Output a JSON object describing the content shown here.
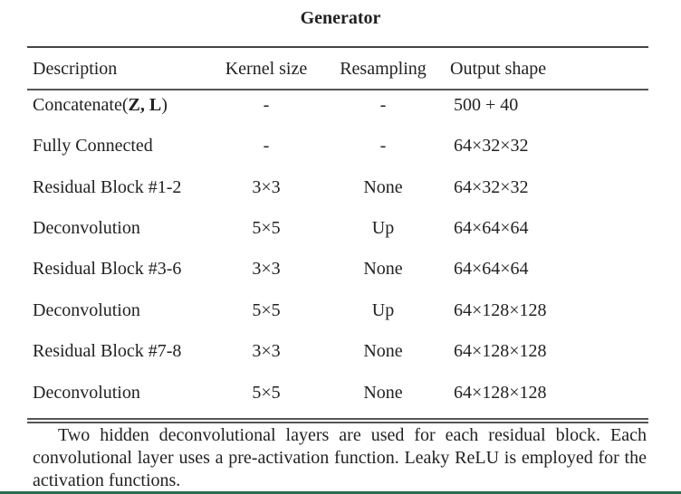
{
  "title": "Generator",
  "columns": [
    "Description",
    "Kernel size",
    "Resampling",
    "Output shape"
  ],
  "rows": [
    {
      "description_prefix": "Concatenate(",
      "description_bold": "Z, L",
      "description_suffix": ")",
      "kernel": "-",
      "resampling": "-",
      "output": "500 + 40"
    },
    {
      "description": "Fully Connected",
      "kernel": "-",
      "resampling": "-",
      "output": "64×32×32"
    },
    {
      "description": "Residual Block #1-2",
      "kernel": "3×3",
      "resampling": "None",
      "output": "64×32×32"
    },
    {
      "description": "Deconvolution",
      "kernel": "5×5",
      "resampling": "Up",
      "output": "64×64×64"
    },
    {
      "description": "Residual Block #3-6",
      "kernel": "3×3",
      "resampling": "None",
      "output": "64×64×64"
    },
    {
      "description": "Deconvolution",
      "kernel": "5×5",
      "resampling": "Up",
      "output": "64×128×128"
    },
    {
      "description": "Residual Block #7-8",
      "kernel": "3×3",
      "resampling": "None",
      "output": "64×128×128"
    },
    {
      "description": "Deconvolution",
      "kernel": "5×5",
      "resampling": "None",
      "output": "64×128×128"
    }
  ],
  "note": "Two hidden deconvolutional layers are used for each residual block. Each convolutional layer uses a pre-activation function. Leaky ReLU is employed for the activation functions.",
  "colors": {
    "text": "#222222",
    "rule": "#444444",
    "bottom_bar": "#2e6b4f"
  }
}
